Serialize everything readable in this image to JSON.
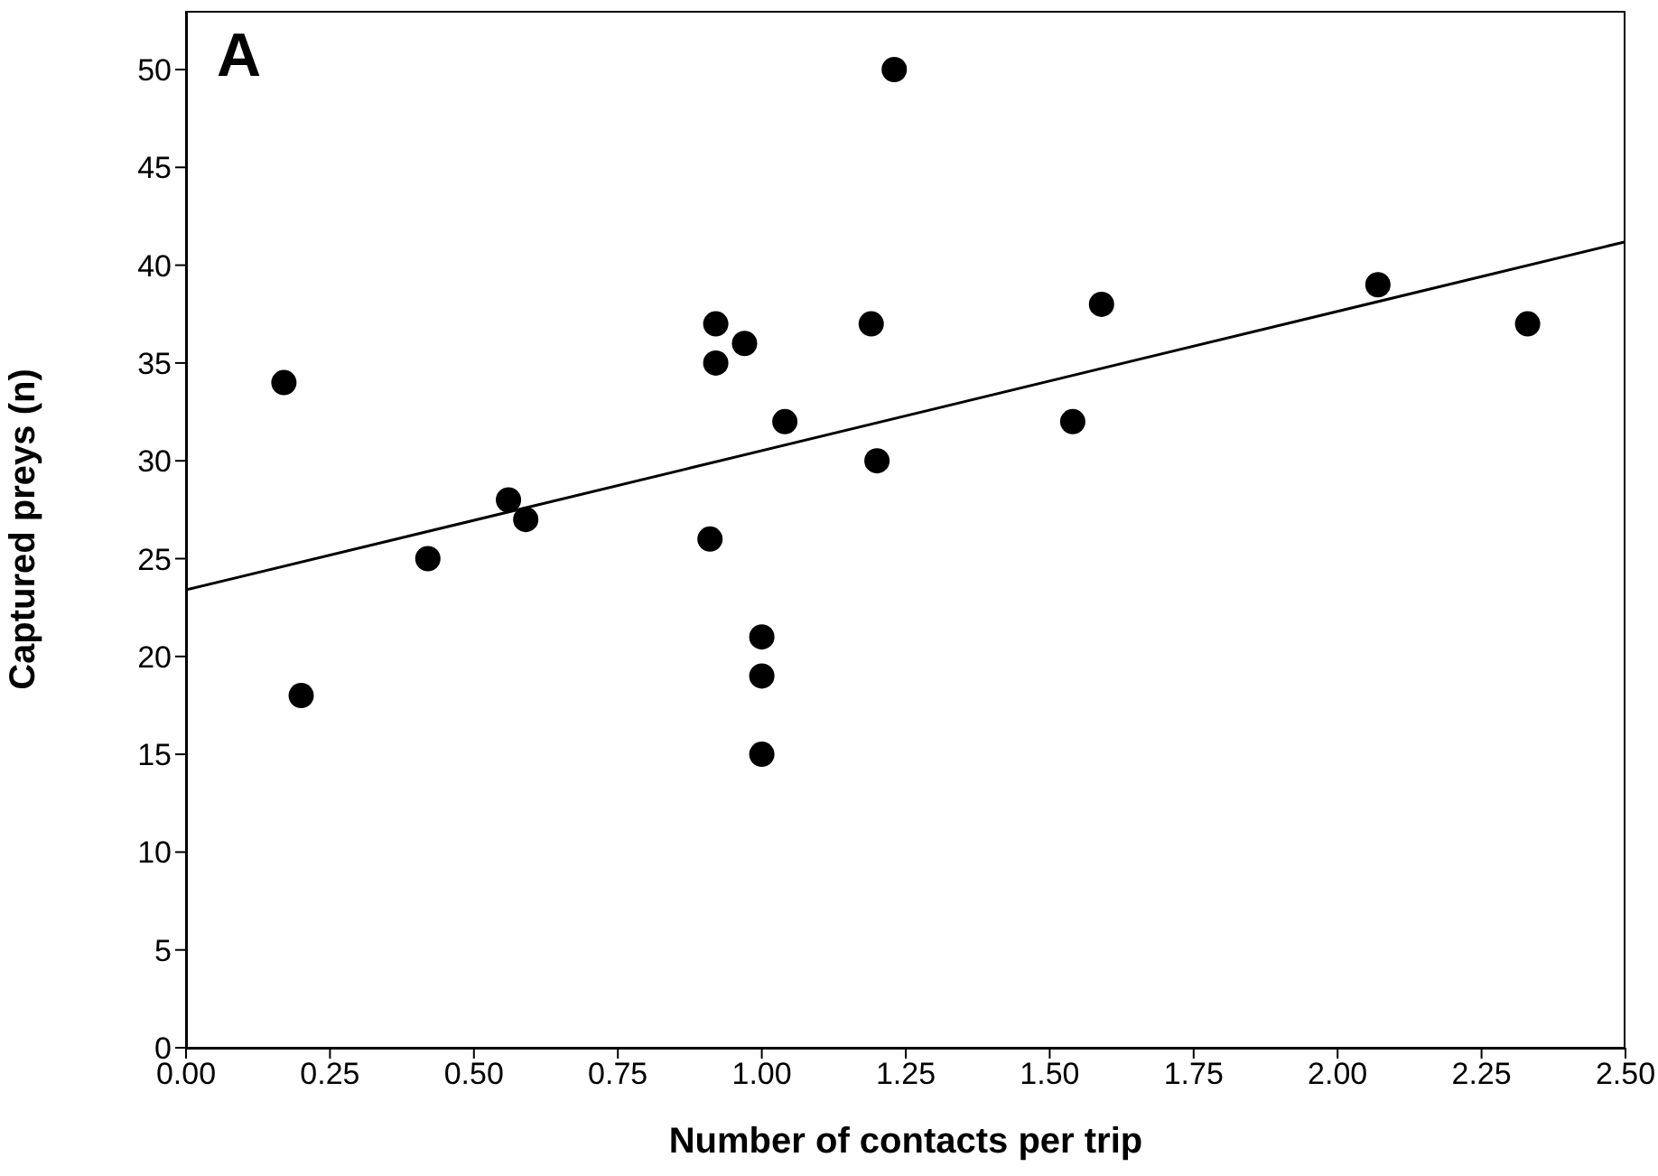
{
  "chart_data": {
    "type": "scatter",
    "xlabel": "Number of contacts per trip",
    "ylabel": "Captured preys (n)",
    "annotations": [
      "A"
    ],
    "xlim": [
      0,
      2.5
    ],
    "xticks": [
      {
        "value": 0,
        "label": "0.00"
      },
      {
        "value": 0.25,
        "label": "0.25"
      },
      {
        "value": 0.5,
        "label": "0.50"
      },
      {
        "value": 0.75,
        "label": "0.75"
      },
      {
        "value": 1,
        "label": "1.00"
      },
      {
        "value": 1.25,
        "label": "1.25"
      },
      {
        "value": 1.5,
        "label": "1.50"
      },
      {
        "value": 1.75,
        "label": "1.75"
      },
      {
        "value": 2,
        "label": "2.00"
      },
      {
        "value": 2.25,
        "label": "2.25"
      },
      {
        "value": 2.5,
        "label": "2.50"
      }
    ],
    "ylim": [
      0,
      53
    ],
    "yticks": [
      0,
      5,
      10,
      15,
      20,
      25,
      30,
      35,
      40,
      45,
      50
    ],
    "series": [
      {
        "type": "scatter",
        "marker": "circle",
        "color": "#000000",
        "x": [
          0.17,
          0.2,
          0.42,
          0.56,
          0.59,
          0.91,
          0.92,
          0.92,
          0.97,
          1.0,
          1.0,
          1.0,
          1.04,
          1.19,
          1.2,
          1.23,
          1.54,
          1.59,
          2.07,
          2.33
        ],
        "values": [
          34,
          18,
          25,
          28,
          27,
          26,
          37,
          35,
          36,
          21,
          19,
          15,
          32,
          37,
          30,
          50,
          32,
          38,
          39,
          37
        ]
      },
      {
        "type": "line",
        "color": "#000000",
        "line_style": "solid",
        "x": [
          0,
          2.5
        ],
        "values": [
          23.4,
          41.2
        ]
      }
    ]
  }
}
